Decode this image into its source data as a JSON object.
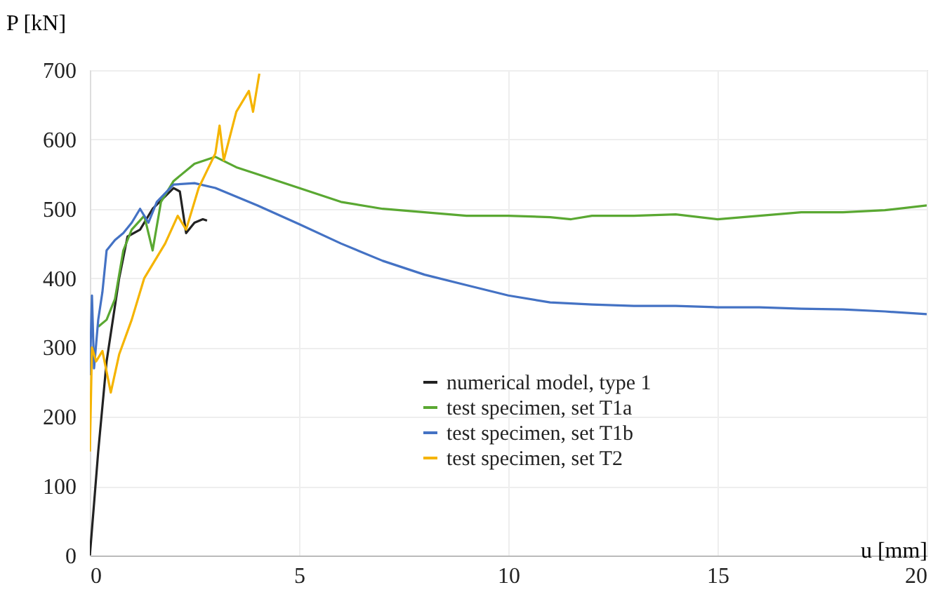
{
  "chart_data": {
    "type": "line",
    "xlabel": "u [mm]",
    "ylabel": "P [kN]",
    "xlim": [
      0,
      20
    ],
    "xticks": [
      0,
      5,
      10,
      15,
      20
    ],
    "ylim": [
      0,
      700
    ],
    "yticks": [
      0,
      100,
      200,
      300,
      400,
      500,
      600,
      700
    ],
    "grid": true,
    "legend": "bottom right",
    "line_style": "solid",
    "marker": "none",
    "series": [
      {
        "name": "numerical model, type 1",
        "color": "#222222",
        "x": [
          0,
          0.2,
          0.4,
          0.7,
          0.9,
          1.2,
          1.5,
          2.0,
          2.15,
          2.3,
          2.5,
          2.7,
          2.8
        ],
        "values": [
          0,
          150,
          280,
          400,
          460,
          470,
          500,
          530,
          525,
          465,
          480,
          485,
          483
        ]
      },
      {
        "name": "test specimen, set T1a",
        "color": "#5aa832",
        "x": [
          0.2,
          0.4,
          0.6,
          0.8,
          1.0,
          1.3,
          1.5,
          1.7,
          2,
          2.5,
          3,
          3.5,
          4,
          5,
          6,
          7,
          8,
          9,
          10,
          11,
          11.5,
          12,
          13,
          14,
          15,
          16,
          17,
          18,
          19,
          20
        ],
        "values": [
          330,
          340,
          370,
          440,
          470,
          490,
          440,
          510,
          540,
          565,
          575,
          560,
          550,
          530,
          510,
          500,
          495,
          490,
          490,
          488,
          485,
          490,
          490,
          492,
          485,
          490,
          495,
          495,
          498,
          505
        ]
      },
      {
        "name": "test specimen, set T1b",
        "color": "#4472c4",
        "x": [
          0,
          0.05,
          0.1,
          0.2,
          0.3,
          0.4,
          0.6,
          0.8,
          1.0,
          1.2,
          1.4,
          1.6,
          2.0,
          2.5,
          3,
          4,
          5,
          6,
          7,
          8,
          9,
          10,
          11,
          12,
          13,
          14,
          15,
          16,
          17,
          18,
          19,
          20
        ],
        "values": [
          260,
          375,
          270,
          340,
          380,
          440,
          455,
          465,
          480,
          500,
          480,
          510,
          535,
          537,
          530,
          505,
          478,
          450,
          425,
          405,
          390,
          375,
          365,
          362,
          360,
          360,
          358,
          358,
          356,
          355,
          352,
          348
        ]
      },
      {
        "name": "test specimen, set T2",
        "color": "#f5b400",
        "x": [
          0,
          0.05,
          0.15,
          0.3,
          0.5,
          0.7,
          1.0,
          1.3,
          1.8,
          2.1,
          2.3,
          2.6,
          3.0,
          3.1,
          3.2,
          3.5,
          3.8,
          3.9,
          4.05
        ],
        "values": [
          150,
          300,
          280,
          295,
          235,
          290,
          340,
          400,
          450,
          490,
          470,
          530,
          580,
          620,
          570,
          640,
          670,
          640,
          695
        ]
      }
    ]
  }
}
